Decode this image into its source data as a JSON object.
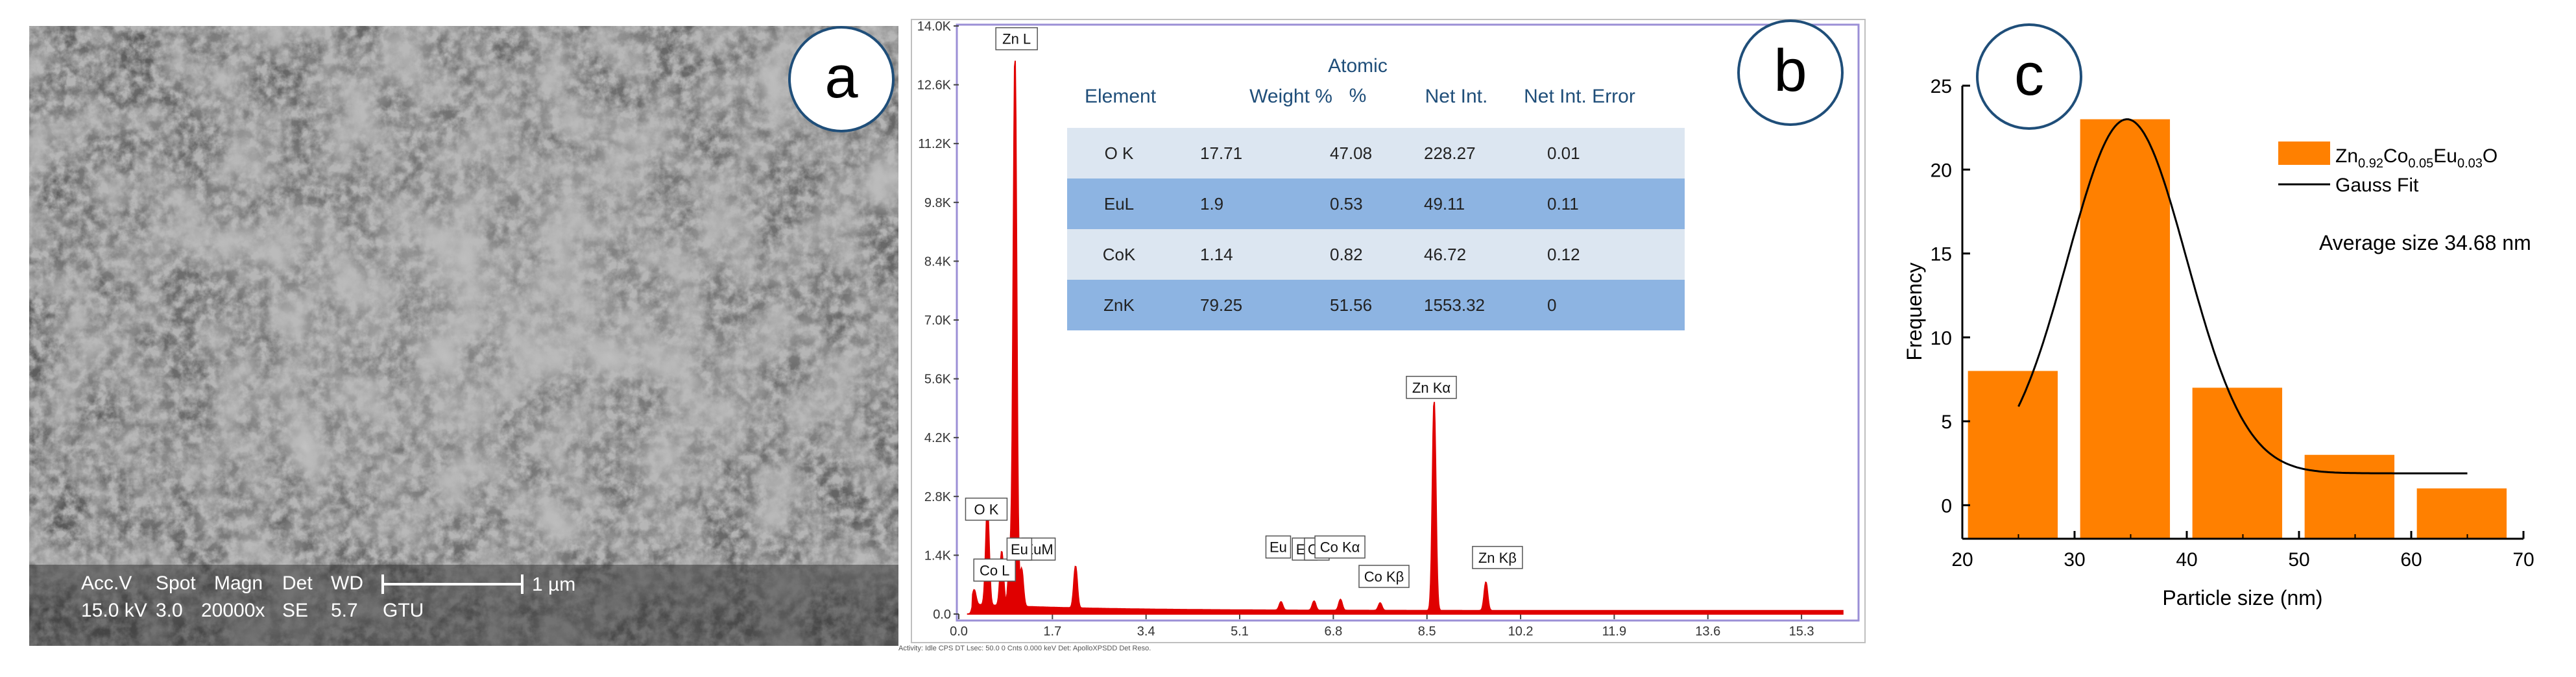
{
  "panels": {
    "a": {
      "letter": "a",
      "scalebar_label": "1 µm",
      "info_header": [
        "Acc.V",
        "Spot",
        "Magn",
        "Det",
        "WD"
      ],
      "info_values": [
        "15.0 kV",
        "3.0",
        "20000x",
        "SE",
        "5.7",
        "GTU"
      ]
    },
    "b": {
      "letter": "b",
      "table": {
        "headers": [
          "Element",
          "Weight %",
          "Atomic %",
          "Net Int.",
          "Net Int. Error"
        ],
        "atomic_header_lines": [
          "Atomic",
          "%"
        ],
        "rows": [
          [
            "O K",
            "17.71",
            "47.08",
            "228.27",
            "0.01"
          ],
          [
            "EuL",
            "1.9",
            "0.53",
            "49.11",
            "0.11"
          ],
          [
            "CoK",
            "1.14",
            "0.82",
            "46.72",
            "0.12"
          ],
          [
            "ZnK",
            "79.25",
            "51.56",
            "1553.32",
            "0"
          ]
        ],
        "row_colors": [
          "#dce6f1",
          "#8db4e2",
          "#dce6f1",
          "#8db4e2"
        ]
      },
      "footer_text": "Activity: Idle CPS    DT    Lsec: 50.0  0 Cnts    0.000 keV  Det: ApolloXPSDD Det    Reso."
    },
    "c": {
      "letter": "c",
      "legend_formula": {
        "parts": [
          "Zn",
          "0.92",
          "Co",
          "0.05",
          "Eu",
          "0.03",
          "O"
        ]
      },
      "legend_fit": "Gauss Fit",
      "annotation": "Average size 34.68 nm"
    }
  },
  "chart_data": [
    {
      "id": "eds",
      "type": "line",
      "title": "",
      "xlabel": "",
      "ylabel": "",
      "xlim": [
        0,
        16.3
      ],
      "ylim": [
        0,
        14000
      ],
      "x_ticks": [
        "0.0",
        "1.7",
        "3.4",
        "5.1",
        "6.8",
        "8.5",
        "10.2",
        "11.9",
        "13.6",
        "15.3"
      ],
      "x_tick_values": [
        0,
        1.7,
        3.4,
        5.1,
        6.8,
        8.5,
        10.2,
        11.9,
        13.6,
        15.3
      ],
      "y_ticks": [
        "0.0",
        "1.4K",
        "2.8K",
        "4.2K",
        "5.6K",
        "7.0K",
        "8.4K",
        "9.8K",
        "11.2K",
        "12.6K",
        "14.0K"
      ],
      "y_tick_values": [
        0,
        1400,
        2800,
        4200,
        5600,
        7000,
        8400,
        9800,
        11200,
        12600,
        14000
      ],
      "line_color": "#e00000",
      "peaks": [
        {
          "x": 0.28,
          "y": 350
        },
        {
          "x": 0.52,
          "y": 2350
        },
        {
          "x": 0.78,
          "y": 1300
        },
        {
          "x": 0.93,
          "y": 1150
        },
        {
          "x": 1.02,
          "y": 13100
        },
        {
          "x": 1.14,
          "y": 900
        },
        {
          "x": 2.12,
          "y": 1000
        },
        {
          "x": 5.85,
          "y": 200
        },
        {
          "x": 6.45,
          "y": 220
        },
        {
          "x": 6.93,
          "y": 260
        },
        {
          "x": 7.65,
          "y": 180
        },
        {
          "x": 8.63,
          "y": 5000
        },
        {
          "x": 9.57,
          "y": 680
        }
      ],
      "peak_labels": [
        {
          "text": "Zn L",
          "x": 1.05,
          "y": 13650
        },
        {
          "text": "O  K",
          "x": 0.5,
          "y": 2450
        },
        {
          "text": "Co L",
          "x": 0.65,
          "y": 1000
        },
        {
          "text": "EuM",
          "x": 1.45,
          "y": 1500
        },
        {
          "text": "Eu",
          "x": 1.1,
          "y": 1500
        },
        {
          "text": "Eu",
          "x": 5.8,
          "y": 1550
        },
        {
          "text": "Eu",
          "x": 6.28,
          "y": 1500
        },
        {
          "text": "Co",
          "x": 6.5,
          "y": 1500
        },
        {
          "text": "Co Kα",
          "x": 6.92,
          "y": 1550
        },
        {
          "text": "Co Kβ",
          "x": 7.72,
          "y": 850
        },
        {
          "text": "Zn Kα",
          "x": 8.58,
          "y": 5350
        },
        {
          "text": "Zn Kβ",
          "x": 9.78,
          "y": 1300
        }
      ]
    },
    {
      "id": "histogram",
      "type": "bar",
      "title": "",
      "xlabel": "Particle size (nm)",
      "ylabel": "Frequency",
      "xlim": [
        20,
        70
      ],
      "ylim": [
        -2,
        25
      ],
      "x_ticks": [
        "20",
        "30",
        "40",
        "50",
        "60",
        "70"
      ],
      "x_tick_values": [
        20,
        30,
        40,
        50,
        60,
        70
      ],
      "y_ticks": [
        "0",
        "5",
        "10",
        "15",
        "20",
        "25"
      ],
      "y_tick_values": [
        0,
        5,
        10,
        15,
        20,
        25
      ],
      "bar_color": "#ff8000",
      "bins": [
        {
          "from": 20.5,
          "to": 28.5,
          "value": 8
        },
        {
          "from": 30.5,
          "to": 38.5,
          "value": 23
        },
        {
          "from": 40.5,
          "to": 48.5,
          "value": 7
        },
        {
          "from": 50.5,
          "to": 58.5,
          "value": 3
        },
        {
          "from": 60.5,
          "to": 68.5,
          "value": 1
        }
      ],
      "fit": {
        "name": "Gauss Fit",
        "y0": 1.9,
        "xc": 34.68,
        "w": 10.6,
        "A": 21.1,
        "x_range": [
          25,
          65
        ]
      },
      "legend_position": "top-right"
    }
  ]
}
